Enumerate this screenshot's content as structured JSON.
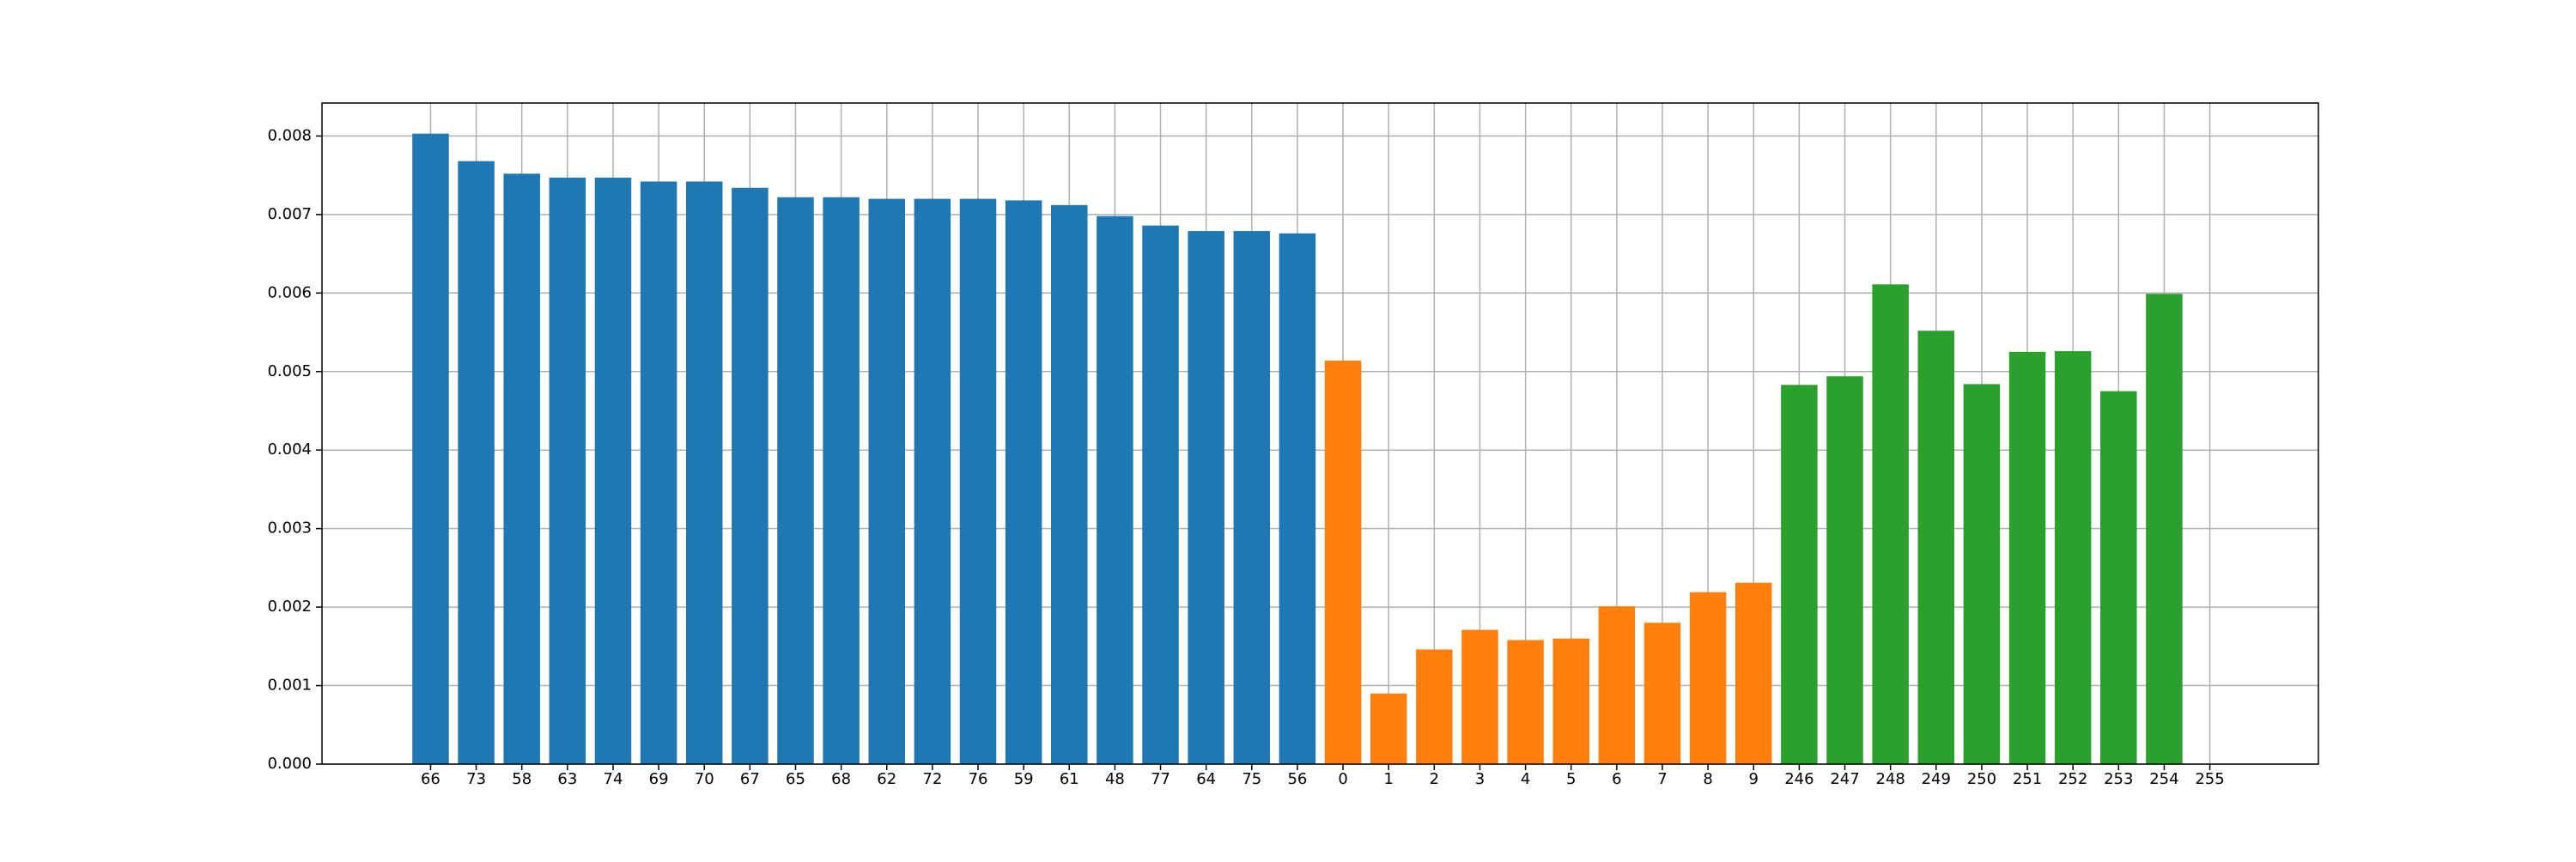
{
  "chart_data": {
    "type": "bar",
    "categories": [
      "66",
      "73",
      "58",
      "63",
      "74",
      "69",
      "70",
      "67",
      "65",
      "68",
      "62",
      "72",
      "76",
      "59",
      "61",
      "48",
      "77",
      "64",
      "75",
      "56",
      "0",
      "1",
      "2",
      "3",
      "4",
      "5",
      "6",
      "7",
      "8",
      "9",
      "246",
      "247",
      "248",
      "249",
      "250",
      "251",
      "252",
      "253",
      "254",
      "255"
    ],
    "series": [
      {
        "color": "#1f77b4",
        "values": [
          0.00803,
          0.00768,
          0.00752,
          0.00747,
          0.00747,
          0.00742,
          0.00742,
          0.00734,
          0.00722,
          0.00722,
          0.0072,
          0.0072,
          0.0072,
          0.00718,
          0.00712,
          0.00698,
          0.00686,
          0.00679,
          0.00679,
          0.00676,
          null,
          null,
          null,
          null,
          null,
          null,
          null,
          null,
          null,
          null,
          null,
          null,
          null,
          null,
          null,
          null,
          null,
          null,
          null,
          null
        ]
      },
      {
        "color": "#ff7f0e",
        "values": [
          null,
          null,
          null,
          null,
          null,
          null,
          null,
          null,
          null,
          null,
          null,
          null,
          null,
          null,
          null,
          null,
          null,
          null,
          null,
          null,
          0.00514,
          0.0009,
          0.00146,
          0.00171,
          0.00158,
          0.0016,
          0.00201,
          0.0018,
          0.00219,
          0.00231,
          null,
          null,
          null,
          null,
          null,
          null,
          null,
          null,
          null,
          null
        ]
      },
      {
        "color": "#2ca02c",
        "values": [
          null,
          null,
          null,
          null,
          null,
          null,
          null,
          null,
          null,
          null,
          null,
          null,
          null,
          null,
          null,
          null,
          null,
          null,
          null,
          null,
          null,
          null,
          null,
          null,
          null,
          null,
          null,
          null,
          null,
          null,
          0.00483,
          0.00494,
          0.00611,
          0.00552,
          0.00484,
          0.00525,
          0.00526,
          0.00475,
          0.00599,
          null
        ]
      }
    ],
    "ylim": [
      0,
      0.00842
    ],
    "yticks": [
      {
        "value": 0,
        "label": "0.000"
      },
      {
        "value": 0.001,
        "label": "0.001"
      },
      {
        "value": 0.002,
        "label": "0.002"
      },
      {
        "value": 0.003,
        "label": "0.003"
      },
      {
        "value": 0.004,
        "label": "0.004"
      },
      {
        "value": 0.005,
        "label": "0.005"
      },
      {
        "value": 0.006,
        "label": "0.006"
      },
      {
        "value": 0.007,
        "label": "0.007"
      },
      {
        "value": 0.008,
        "label": "0.008"
      }
    ],
    "grid": true
  }
}
